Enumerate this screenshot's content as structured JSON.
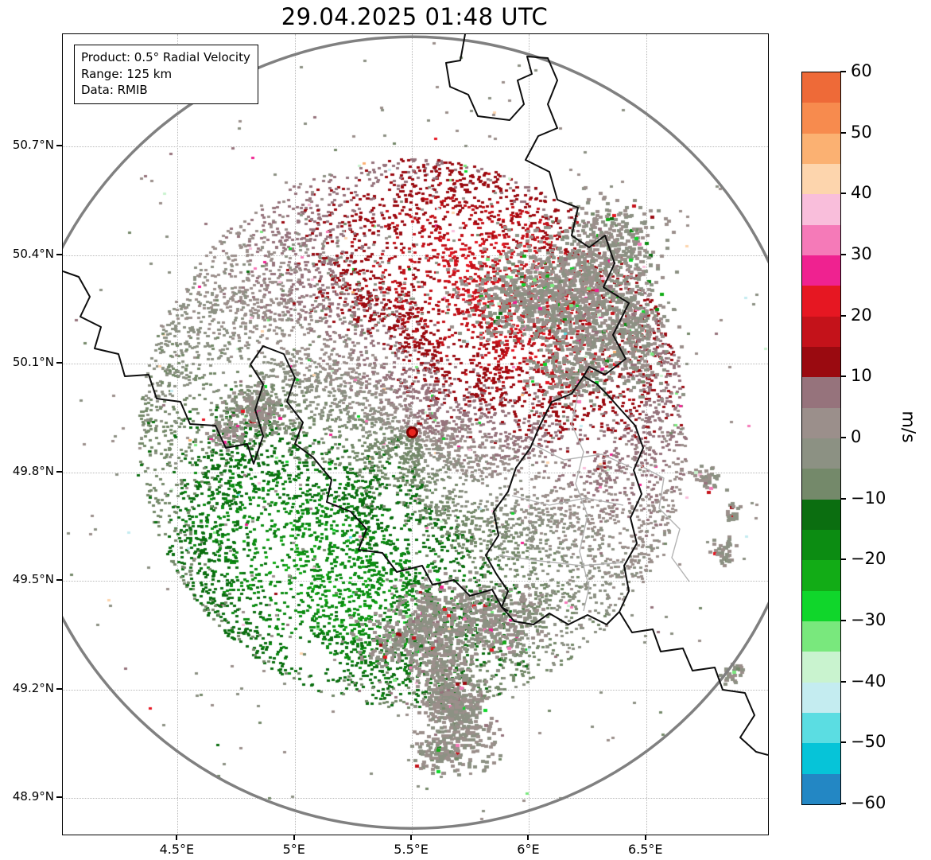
{
  "title": "29.04.2025 01:48 UTC",
  "info_box": {
    "product": "Product: 0.5° Radial Velocity",
    "range": "Range: 125 km",
    "data": "Data: RMIB"
  },
  "colorbar": {
    "unit": "m/s",
    "tick_labels": [
      "60",
      "50",
      "40",
      "30",
      "20",
      "10",
      "0",
      "−10",
      "−20",
      "−30",
      "−40",
      "−50",
      "−60"
    ],
    "colors": [
      "#ee6a38",
      "#f78b4e",
      "#fbb172",
      "#fdd5ad",
      "#f9bedb",
      "#f57ab8",
      "#ef2290",
      "#e61722",
      "#c4121a",
      "#9a0a10",
      "#96737c",
      "#9b8f8b",
      "#8c9183",
      "#74896a",
      "#0b6e10",
      "#0c8c12",
      "#12ac16",
      "#10d62b",
      "#79e87d",
      "#c9f3cf",
      "#c4ecf0",
      "#5bdde2",
      "#06c4d8",
      "#2387c4"
    ]
  },
  "chart_data": {
    "type": "heatmap",
    "title": "29.04.2025 01:48 UTC",
    "product": "0.5° Radial Velocity",
    "source": "RMIB",
    "unit": "m/s",
    "range_ring_km": 125,
    "x_axis": {
      "tick_values": [
        4.5,
        5.0,
        5.5,
        6.0,
        6.5
      ],
      "tick_labels": [
        "4.5°E",
        "5°E",
        "5.5°E",
        "6°E",
        "6.5°E"
      ],
      "range": [
        4.01,
        7.02
      ]
    },
    "y_axis": {
      "tick_values": [
        50.7,
        50.4,
        50.1,
        49.8,
        49.5,
        49.2,
        48.9
      ],
      "tick_labels": [
        "50.7°N",
        "50.4°N",
        "50.1°N",
        "49.8°N",
        "49.5°N",
        "49.2°N",
        "48.9°N"
      ],
      "range": [
        48.8,
        51.01
      ]
    },
    "radar_center": {
      "lon": 5.5,
      "lat": 49.91
    },
    "colorbar": {
      "min": -60,
      "max": 60,
      "band_step": 5,
      "tick_values": [
        60,
        50,
        40,
        30,
        20,
        10,
        0,
        -10,
        -20,
        -30,
        -40,
        -50,
        -60
      ]
    },
    "features": [
      {
        "region": "north to northeast of radar",
        "radial_velocity_ms": "+8 to +18",
        "appearance": "dark red (outbound)"
      },
      {
        "region": "southwest of radar",
        "radial_velocity_ms": "-10 to -30",
        "appearance": "green (inbound)"
      },
      {
        "region": "zero-isodop band running NW-SE through radar",
        "radial_velocity_ms": "-5 to +5",
        "appearance": "grey / mauve"
      },
      {
        "region": "clutter clumps northeast along border, tail to the south, scattered east",
        "radial_velocity_ms": "near 0",
        "appearance": "grey"
      }
    ],
    "map_layers": [
      "national/regional boundaries (black)",
      "district boundaries (light grey)",
      "125 km range ring (grey circle)"
    ]
  }
}
